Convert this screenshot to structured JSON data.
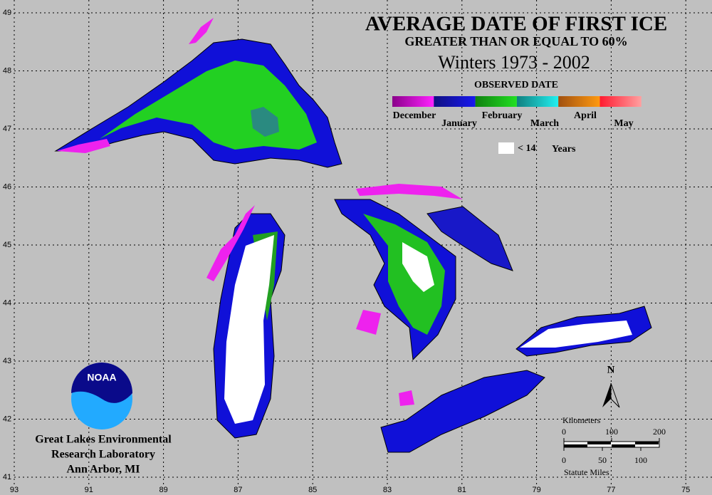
{
  "title": "AVERAGE DATE OF FIRST ICE",
  "subtitle": "GREATER THAN OR EQUAL TO 60%",
  "period": "Winters 1973 - 2002",
  "legend": {
    "title": "OBSERVED DATE",
    "months": [
      "December",
      "January",
      "February",
      "March",
      "April",
      "May"
    ],
    "white_label": "< 14",
    "white_unit": "Years"
  },
  "north": "N",
  "scale": {
    "km_title": "Kilometers",
    "km_ticks": [
      0,
      100,
      200
    ],
    "mi_ticks": [
      0,
      50,
      100
    ],
    "mi_title": "Statute Miles"
  },
  "logo": "NOAA",
  "credit": [
    "Great Lakes Environmental",
    "Research Laboratory",
    "Ann Arbor, MI"
  ],
  "latitudes": [
    49,
    48,
    47,
    46,
    45,
    44,
    43,
    42,
    41
  ],
  "longitudes": [
    93,
    91,
    89,
    87,
    85,
    83,
    81,
    79,
    77,
    75
  ]
}
